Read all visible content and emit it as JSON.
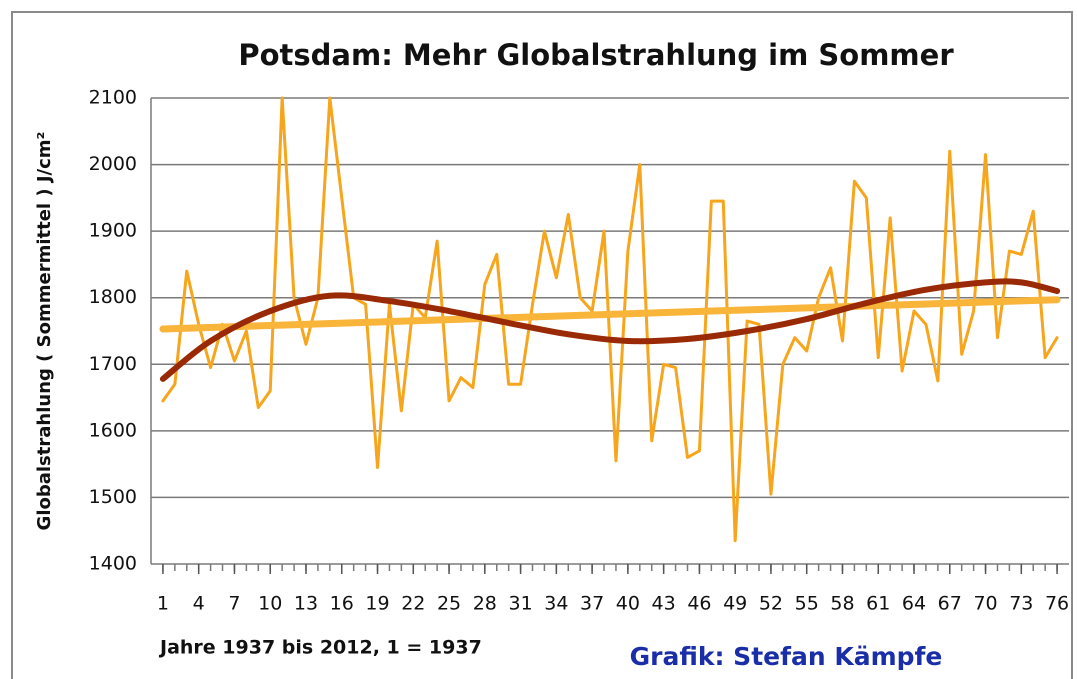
{
  "chart_data": {
    "type": "line",
    "title": "Potsdam: Mehr Globalstrahlung im Sommer",
    "y_label": "Globalstrahlung ( Sommermittel ) J/cm²",
    "x_label": "Jahre 1937 bis 2012, 1 = 1937",
    "credit": "Grafik: Stefan Kämpfe",
    "xlim": [
      0,
      77
    ],
    "ylim": [
      1400,
      2100
    ],
    "yticks": [
      1400,
      1500,
      1600,
      1700,
      1800,
      1900,
      2000,
      2100
    ],
    "xticks": [
      1,
      4,
      7,
      10,
      13,
      16,
      19,
      22,
      25,
      28,
      31,
      34,
      37,
      40,
      43,
      46,
      49,
      52,
      55,
      58,
      61,
      64,
      67,
      70,
      73,
      76
    ],
    "grid": true,
    "series": [
      {
        "color": "#f7a51c",
        "width": 3,
        "x": [
          1,
          2,
          3,
          4,
          5,
          6,
          7,
          8,
          9,
          10,
          11,
          12,
          13,
          14,
          15,
          16,
          17,
          18,
          19,
          20,
          21,
          22,
          23,
          24,
          25,
          26,
          27,
          28,
          29,
          30,
          31,
          32,
          33,
          34,
          35,
          36,
          37,
          38,
          39,
          40,
          41,
          42,
          43,
          44,
          45,
          46,
          47,
          48,
          49,
          50,
          51,
          52,
          53,
          54,
          55,
          56,
          57,
          58,
          59,
          60,
          61,
          62,
          63,
          64,
          65,
          66,
          67,
          68,
          69,
          70,
          71,
          72,
          73,
          74,
          75,
          76
        ],
        "values": [
          1645,
          1670,
          1840,
          1760,
          1695,
          1760,
          1705,
          1750,
          1635,
          1660,
          2100,
          1800,
          1730,
          1800,
          2100,
          1950,
          1800,
          1790,
          1545,
          1790,
          1630,
          1790,
          1770,
          1885,
          1645,
          1680,
          1665,
          1820,
          1865,
          1670,
          1670,
          1790,
          1900,
          1830,
          1925,
          1800,
          1780,
          1900,
          1555,
          1870,
          2000,
          1585,
          1700,
          1695,
          1560,
          1570,
          1945,
          1945,
          1435,
          1765,
          1760,
          1505,
          1700,
          1740,
          1720,
          1800,
          1845,
          1735,
          1975,
          1950,
          1710,
          1920,
          1690,
          1780,
          1760,
          1675,
          2020,
          1715,
          1780,
          2015,
          1740,
          1870,
          1865,
          1930,
          1710,
          1740
        ]
      },
      {
        "color": "#f9b43a",
        "width": 7,
        "x": [
          1,
          76
        ],
        "values": [
          1753,
          1797
        ]
      },
      {
        "color": "#992a05",
        "width": 6,
        "smooth": true,
        "x": [
          1,
          5,
          10,
          15,
          20,
          25,
          30,
          35,
          40,
          45,
          50,
          55,
          60,
          65,
          70,
          73,
          76
        ],
        "values": [
          1678,
          1735,
          1780,
          1803,
          1795,
          1780,
          1762,
          1745,
          1735,
          1738,
          1750,
          1768,
          1792,
          1812,
          1823,
          1823,
          1810
        ]
      }
    ]
  }
}
